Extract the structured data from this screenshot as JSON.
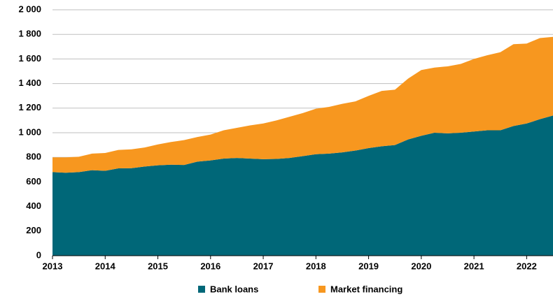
{
  "chart_data": {
    "type": "stacked_area",
    "x": [
      2013,
      2013.25,
      2013.5,
      2013.75,
      2014,
      2014.25,
      2014.5,
      2014.75,
      2015,
      2015.25,
      2015.5,
      2015.75,
      2016,
      2016.25,
      2016.5,
      2016.75,
      2017,
      2017.25,
      2017.5,
      2017.75,
      2018,
      2018.25,
      2018.5,
      2018.75,
      2019,
      2019.25,
      2019.5,
      2019.75,
      2020,
      2020.25,
      2020.5,
      2020.75,
      2021,
      2021.25,
      2021.5,
      2021.75,
      2022,
      2022.25,
      2022.5
    ],
    "series": [
      {
        "name": "Bank loans",
        "color": "#006778",
        "values": [
          680,
          675,
          680,
          695,
          690,
          710,
          712,
          725,
          735,
          740,
          738,
          765,
          775,
          790,
          795,
          790,
          785,
          787,
          795,
          810,
          825,
          830,
          840,
          855,
          875,
          890,
          900,
          945,
          975,
          1000,
          995,
          1000,
          1010,
          1020,
          1020,
          1055,
          1075,
          1110,
          1140
        ]
      },
      {
        "name": "Market financing",
        "color": "#f7971f",
        "values": [
          120,
          125,
          125,
          135,
          145,
          150,
          153,
          155,
          170,
          185,
          202,
          200,
          210,
          230,
          245,
          270,
          290,
          313,
          335,
          350,
          370,
          380,
          395,
          400,
          425,
          450,
          450,
          495,
          535,
          530,
          545,
          560,
          590,
          610,
          635,
          665,
          650,
          660,
          640
        ]
      }
    ],
    "xlim": [
      2013,
      2022.5
    ],
    "xticks": [
      2013,
      2014,
      2015,
      2016,
      2017,
      2018,
      2019,
      2020,
      2021,
      2022
    ],
    "ylim": [
      0,
      2000
    ],
    "yticks": [
      0,
      200,
      400,
      600,
      800,
      {
        "value": 1000,
        "label": "1 000"
      },
      {
        "value": 1200,
        "label": "1 200"
      },
      {
        "value": 1400,
        "label": "1 400"
      },
      {
        "value": 1600,
        "label": "1 600"
      },
      {
        "value": 1800,
        "label": "1 800"
      },
      {
        "value": 2000,
        "label": "2 000"
      }
    ],
    "grid": true
  }
}
